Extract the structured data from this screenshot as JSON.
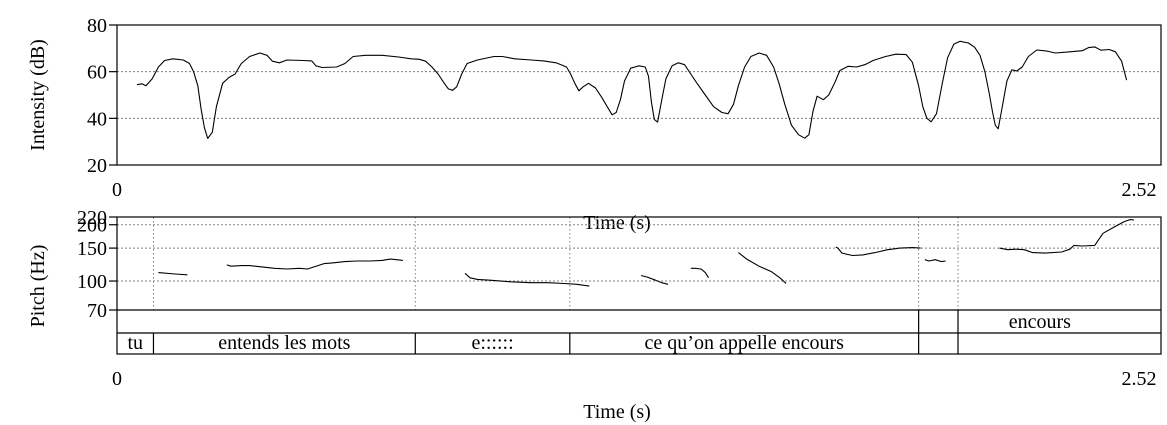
{
  "chart_data": [
    {
      "type": "line",
      "ylabel": "Intensity (dB)",
      "xlabel": "Time (s)",
      "xlim": [
        0,
        2.52
      ],
      "ylim": [
        20,
        80
      ],
      "x_ticks": [
        "0",
        "2.52"
      ],
      "y_ticks": [
        20,
        40,
        60,
        80
      ],
      "grid": [
        40,
        60
      ],
      "series": [
        {
          "points": [
            [
              0.048,
              54.4
            ],
            [
              0.06,
              54.8
            ],
            [
              0.07,
              54.0
            ],
            [
              0.085,
              57.0
            ],
            [
              0.1,
              62.0
            ],
            [
              0.115,
              64.8
            ],
            [
              0.135,
              65.5
            ],
            [
              0.16,
              65.0
            ],
            [
              0.175,
              63.5
            ],
            [
              0.185,
              60.0
            ],
            [
              0.195,
              54.0
            ],
            [
              0.203,
              44.0
            ],
            [
              0.211,
              36.0
            ],
            [
              0.219,
              31.4
            ],
            [
              0.23,
              34.0
            ],
            [
              0.24,
              45.0
            ],
            [
              0.255,
              55.0
            ],
            [
              0.27,
              57.5
            ],
            [
              0.285,
              59.0
            ],
            [
              0.3,
              63.5
            ],
            [
              0.32,
              66.5
            ],
            [
              0.345,
              68.0
            ],
            [
              0.362,
              67.0
            ],
            [
              0.375,
              64.5
            ],
            [
              0.392,
              63.8
            ],
            [
              0.41,
              65.0
            ],
            [
              0.45,
              64.8
            ],
            [
              0.47,
              64.6
            ],
            [
              0.48,
              62.5
            ],
            [
              0.495,
              61.8
            ],
            [
              0.53,
              62.0
            ],
            [
              0.55,
              63.5
            ],
            [
              0.57,
              66.5
            ],
            [
              0.6,
              67.0
            ],
            [
              0.64,
              67.0
            ],
            [
              0.68,
              66.3
            ],
            [
              0.71,
              65.5
            ],
            [
              0.73,
              65.3
            ],
            [
              0.745,
              64.5
            ],
            [
              0.76,
              62.0
            ],
            [
              0.775,
              59.0
            ],
            [
              0.79,
              55.0
            ],
            [
              0.8,
              52.6
            ],
            [
              0.81,
              52.0
            ],
            [
              0.82,
              53.5
            ],
            [
              0.832,
              59.0
            ],
            [
              0.845,
              63.5
            ],
            [
              0.87,
              65.0
            ],
            [
              0.91,
              66.5
            ],
            [
              0.93,
              66.5
            ],
            [
              0.96,
              65.5
            ],
            [
              1.0,
              65.0
            ],
            [
              1.03,
              64.6
            ],
            [
              1.06,
              63.8
            ],
            [
              1.085,
              62.0
            ],
            [
              1.095,
              59.0
            ],
            [
              1.105,
              55.0
            ],
            [
              1.115,
              51.8
            ],
            [
              1.125,
              53.5
            ],
            [
              1.138,
              55.0
            ],
            [
              1.155,
              53.0
            ],
            [
              1.17,
              49.0
            ],
            [
              1.185,
              44.5
            ],
            [
              1.195,
              41.5
            ],
            [
              1.205,
              42.5
            ],
            [
              1.215,
              48.0
            ],
            [
              1.225,
              56.0
            ],
            [
              1.24,
              61.5
            ],
            [
              1.26,
              62.5
            ],
            [
              1.275,
              62.0
            ],
            [
              1.283,
              58.0
            ],
            [
              1.29,
              47.0
            ],
            [
              1.297,
              39.5
            ],
            [
              1.305,
              38.4
            ],
            [
              1.315,
              48.0
            ],
            [
              1.325,
              57.0
            ],
            [
              1.34,
              62.5
            ],
            [
              1.355,
              63.8
            ],
            [
              1.37,
              63.0
            ],
            [
              1.385,
              59.0
            ],
            [
              1.4,
              55.0
            ],
            [
              1.42,
              50.0
            ],
            [
              1.44,
              45.0
            ],
            [
              1.46,
              42.5
            ],
            [
              1.475,
              42.0
            ],
            [
              1.488,
              46.0
            ],
            [
              1.5,
              54.0
            ],
            [
              1.515,
              62.0
            ],
            [
              1.53,
              66.5
            ],
            [
              1.55,
              68.0
            ],
            [
              1.568,
              67.0
            ],
            [
              1.585,
              62.0
            ],
            [
              1.598,
              55.0
            ],
            [
              1.612,
              46.0
            ],
            [
              1.628,
              37.0
            ],
            [
              1.645,
              33.0
            ],
            [
              1.66,
              31.5
            ],
            [
              1.67,
              33.0
            ],
            [
              1.68,
              43.0
            ],
            [
              1.69,
              49.5
            ],
            [
              1.705,
              48.0
            ],
            [
              1.718,
              50.0
            ],
            [
              1.732,
              55.0
            ],
            [
              1.745,
              60.5
            ],
            [
              1.765,
              62.3
            ],
            [
              1.785,
              62.0
            ],
            [
              1.805,
              63.0
            ],
            [
              1.825,
              64.8
            ],
            [
              1.855,
              66.5
            ],
            [
              1.88,
              67.5
            ],
            [
              1.905,
              67.3
            ],
            [
              1.92,
              64.0
            ],
            [
              1.935,
              54.0
            ],
            [
              1.945,
              45.0
            ],
            [
              1.955,
              40.0
            ],
            [
              1.965,
              38.5
            ],
            [
              1.978,
              42.0
            ],
            [
              1.992,
              55.0
            ],
            [
              2.005,
              66.0
            ],
            [
              2.02,
              71.8
            ],
            [
              2.035,
              73.0
            ],
            [
              2.055,
              72.3
            ],
            [
              2.07,
              70.5
            ],
            [
              2.083,
              67.0
            ],
            [
              2.095,
              60.0
            ],
            [
              2.105,
              51.0
            ],
            [
              2.113,
              43.0
            ],
            [
              2.12,
              37.0
            ],
            [
              2.127,
              35.5
            ],
            [
              2.137,
              45.0
            ],
            [
              2.148,
              56.0
            ],
            [
              2.16,
              60.8
            ],
            [
              2.172,
              60.3
            ],
            [
              2.185,
              62.0
            ],
            [
              2.2,
              66.5
            ],
            [
              2.22,
              69.3
            ],
            [
              2.245,
              68.8
            ],
            [
              2.265,
              68.0
            ],
            [
              2.3,
              68.5
            ],
            [
              2.33,
              69.0
            ],
            [
              2.345,
              70.3
            ],
            [
              2.36,
              70.6
            ],
            [
              2.375,
              69.2
            ],
            [
              2.395,
              69.5
            ],
            [
              2.41,
              68.5
            ],
            [
              2.425,
              64.5
            ],
            [
              2.437,
              56.4
            ]
          ]
        }
      ]
    },
    {
      "type": "line",
      "ylabel": "Pitch (Hz)",
      "xlabel": "Time (s)",
      "xlim": [
        0,
        2.52
      ],
      "ylim": [
        70,
        220
      ],
      "y_scale": "log",
      "x_ticks": [
        "0",
        "2.52"
      ],
      "y_ticks": [
        70,
        100,
        150,
        200,
        220
      ],
      "grid": [
        100,
        150,
        200
      ],
      "series": [
        {
          "segments": [
            [
              [
                0.1,
                111
              ],
              [
                0.14,
                109
              ],
              [
                0.17,
                108
              ]
            ],
            [
              [
                0.265,
                122
              ],
              [
                0.275,
                120
              ],
              [
                0.3,
                121
              ],
              [
                0.32,
                121
              ],
              [
                0.35,
                119
              ],
              [
                0.38,
                117
              ],
              [
                0.41,
                116
              ],
              [
                0.44,
                117
              ],
              [
                0.46,
                116
              ],
              [
                0.47,
                118
              ],
              [
                0.485,
                121
              ],
              [
                0.5,
                124
              ],
              [
                0.52,
                125
              ],
              [
                0.55,
                127
              ],
              [
                0.58,
                128
              ],
              [
                0.61,
                128
              ],
              [
                0.64,
                129
              ],
              [
                0.66,
                131
              ],
              [
                0.675,
                130
              ],
              [
                0.69,
                129
              ]
            ],
            [
              [
                0.84,
                110
              ],
              [
                0.852,
                104
              ],
              [
                0.87,
                102
              ],
              [
                0.9,
                101
              ],
              [
                0.95,
                99
              ],
              [
                1.0,
                98
              ],
              [
                1.04,
                98
              ],
              [
                1.08,
                97
              ],
              [
                1.11,
                96
              ],
              [
                1.14,
                94
              ]
            ],
            [
              [
                1.265,
                107
              ],
              [
                1.28,
                105
              ],
              [
                1.3,
                101
              ],
              [
                1.315,
                98
              ],
              [
                1.33,
                96
              ]
            ],
            [
              [
                1.385,
                117
              ],
              [
                1.395,
                117
              ],
              [
                1.41,
                116
              ],
              [
                1.42,
                111
              ],
              [
                1.428,
                104
              ]
            ],
            [
              [
                1.5,
                142
              ],
              [
                1.52,
                131
              ],
              [
                1.55,
                120
              ],
              [
                1.58,
                112
              ],
              [
                1.6,
                104
              ],
              [
                1.615,
                97
              ]
            ],
            [
              [
                1.735,
                152
              ],
              [
                1.74,
                150
              ],
              [
                1.75,
                141
              ],
              [
                1.775,
                137
              ],
              [
                1.8,
                138
              ],
              [
                1.83,
                142
              ],
              [
                1.86,
                147
              ],
              [
                1.89,
                150
              ],
              [
                1.92,
                151
              ],
              [
                1.94,
                150
              ]
            ],
            [
              [
                1.95,
                130
              ],
              [
                1.96,
                128
              ],
              [
                1.975,
                130
              ],
              [
                1.99,
                127
              ],
              [
                2.0,
                128
              ]
            ],
            [
              [
                2.13,
                150
              ],
              [
                2.15,
                147
              ],
              [
                2.17,
                148
              ],
              [
                2.19,
                147
              ],
              [
                2.21,
                142
              ],
              [
                2.24,
                141
              ],
              [
                2.28,
                143
              ],
              [
                2.3,
                148
              ],
              [
                2.31,
                155
              ],
              [
                2.33,
                154
              ],
              [
                2.36,
                155
              ],
              [
                2.38,
                180
              ],
              [
                2.41,
                196
              ],
              [
                2.43,
                207
              ],
              [
                2.445,
                213
              ],
              [
                2.455,
                212
              ]
            ]
          ]
        }
      ]
    }
  ],
  "tiers": {
    "tier1": {
      "boundaries": [
        1.935,
        2.03
      ],
      "labels": [
        {
          "text": "encours",
          "start": 1.935,
          "end": 2.52
        }
      ]
    },
    "tier2": {
      "boundaries": [
        0.088,
        0.72,
        1.093,
        1.935,
        2.03
      ],
      "labels": [
        {
          "text": "tu",
          "start": 0.0,
          "end": 0.088
        },
        {
          "text": "entends les mots",
          "start": 0.088,
          "end": 0.72
        },
        {
          "text": "e::::::",
          "start": 0.72,
          "end": 1.093
        },
        {
          "text": "ce qu’on appelle encours",
          "start": 1.093,
          "end": 1.935
        }
      ]
    }
  },
  "panel_boundaries": [
    0.088,
    0.72,
    1.093,
    1.935,
    2.03
  ]
}
